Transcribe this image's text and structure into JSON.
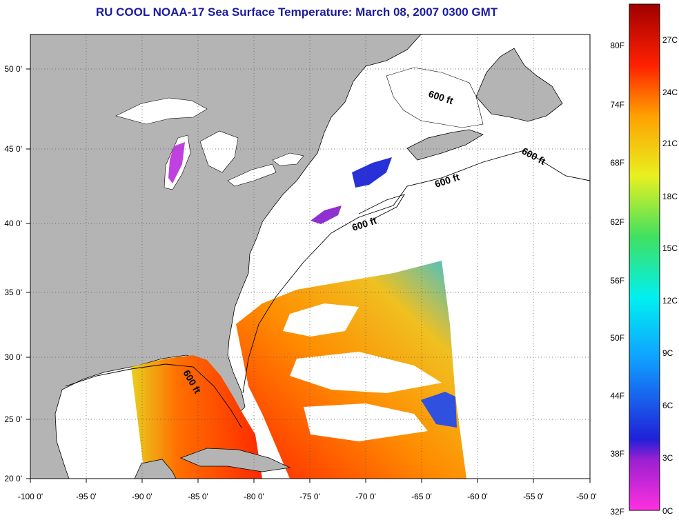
{
  "title": "RU COOL  NOAA-17  Sea Surface Temperature:  March 08, 2007 0300 GMT",
  "map": {
    "lon_ticks": [
      "-100 0'",
      "-95 0'",
      "-90 0'",
      "-85 0'",
      "-80 0'",
      "-75 0'",
      "-70 0'",
      "-65 0'",
      "-60 0'",
      "-55 0'",
      "-50 0'"
    ],
    "lat_ticks": [
      "50 0'",
      "45 0'",
      "40 0'",
      "35 0'",
      "30 0'",
      "25 0'",
      "20 0'"
    ],
    "isobath_labels": [
      "600 ft",
      "600 ft",
      "600 ft",
      "600 ft",
      "600 ft"
    ],
    "colors": {
      "land": "#b4b4b4",
      "lakes": "#ffffff",
      "ocean": "#ffffff"
    }
  },
  "colorbar": {
    "fahrenheit": [
      "80F",
      "74F",
      "68F",
      "62F",
      "56F",
      "50F",
      "44F",
      "38F",
      "32F"
    ],
    "celsius": [
      "27C",
      "24C",
      "21C",
      "18C",
      "15C",
      "12C",
      "9C",
      "6C",
      "3C",
      "0C"
    ]
  }
}
